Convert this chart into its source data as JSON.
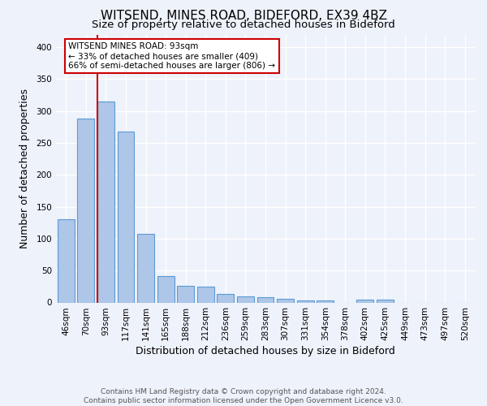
{
  "title": "WITSEND, MINES ROAD, BIDEFORD, EX39 4BZ",
  "subtitle": "Size of property relative to detached houses in Bideford",
  "xlabel": "Distribution of detached houses by size in Bideford",
  "ylabel": "Number of detached properties",
  "footer_line1": "Contains HM Land Registry data © Crown copyright and database right 2024.",
  "footer_line2": "Contains public sector information licensed under the Open Government Licence v3.0.",
  "categories": [
    "46sqm",
    "70sqm",
    "93sqm",
    "117sqm",
    "141sqm",
    "165sqm",
    "188sqm",
    "212sqm",
    "236sqm",
    "259sqm",
    "283sqm",
    "307sqm",
    "331sqm",
    "354sqm",
    "378sqm",
    "402sqm",
    "425sqm",
    "449sqm",
    "473sqm",
    "497sqm",
    "520sqm"
  ],
  "values": [
    130,
    288,
    315,
    268,
    108,
    42,
    26,
    25,
    13,
    10,
    8,
    6,
    3,
    3,
    0,
    4,
    4,
    0,
    0,
    0,
    0
  ],
  "bar_color": "#aec6e8",
  "bar_edge_color": "#5b9bd5",
  "highlight_index": 2,
  "highlight_line_color": "#cc0000",
  "annotation_line1": "WITSEND MINES ROAD: 93sqm",
  "annotation_line2": "← 33% of detached houses are smaller (409)",
  "annotation_line3": "66% of semi-detached houses are larger (806) →",
  "annotation_box_color": "#ffffff",
  "annotation_box_edge_color": "#cc0000",
  "ylim": [
    0,
    420
  ],
  "yticks": [
    0,
    50,
    100,
    150,
    200,
    250,
    300,
    350,
    400
  ],
  "background_color": "#eef2fb",
  "grid_color": "#ffffff",
  "title_fontsize": 11,
  "subtitle_fontsize": 9.5,
  "axis_label_fontsize": 9,
  "tick_fontsize": 7.5,
  "footer_fontsize": 6.5
}
